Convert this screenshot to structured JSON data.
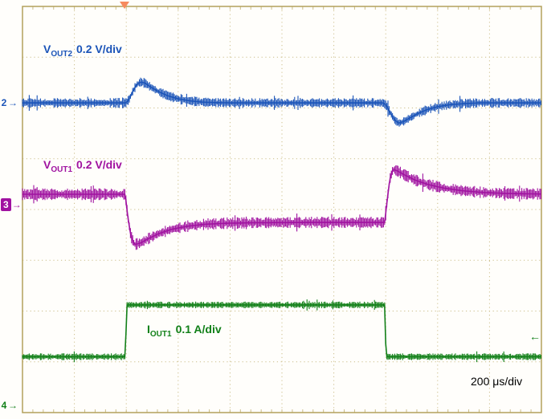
{
  "scope": {
    "timebase_label": "200 μs/div",
    "grid": {
      "h_divisions": 10,
      "v_divisions": 8,
      "graticule_color": "#ccbe8a",
      "border_color": "#b3a15c",
      "background": "#fffefb"
    },
    "trigger_marker": {
      "position_div": 1.97,
      "color": "#f68a5e"
    },
    "right_level_marker": {
      "channel": "4",
      "position_div_from_top": 6.5,
      "color": "#128019"
    }
  },
  "icons": {
    "channel_marker_arrow": "→",
    "trigger_level_arrow": "←"
  },
  "chart_data": {
    "type": "line",
    "x": {
      "unit": "μs",
      "per_division": 200,
      "divisions": 10,
      "total_us": 2000
    },
    "y_divisions": 8,
    "timebase_label": "200 μs/div",
    "series": [
      {
        "name": "VOUT2",
        "channel": "2",
        "label_base": "V",
        "label_sub": "OUT2",
        "label_scale": "0.2 V/div",
        "unit": "V",
        "units_per_div": 0.2,
        "zero_div_from_top": 1.9,
        "noise_amplitude": 0.016,
        "highlighted": false,
        "color": "#1b54b8",
        "points_t_us_v": [
          [
            0,
            0
          ],
          [
            398,
            0
          ],
          [
            410,
            0.012
          ],
          [
            425,
            0.045
          ],
          [
            440,
            0.072
          ],
          [
            455,
            0.082
          ],
          [
            472,
            0.078
          ],
          [
            495,
            0.062
          ],
          [
            525,
            0.044
          ],
          [
            560,
            0.028
          ],
          [
            600,
            0.016
          ],
          [
            645,
            0.008
          ],
          [
            695,
            0.003
          ],
          [
            750,
            0.001
          ],
          [
            800,
            0
          ],
          [
            1390,
            0
          ],
          [
            1402,
            -0.01
          ],
          [
            1418,
            -0.04
          ],
          [
            1435,
            -0.068
          ],
          [
            1450,
            -0.08
          ],
          [
            1468,
            -0.074
          ],
          [
            1492,
            -0.06
          ],
          [
            1522,
            -0.043
          ],
          [
            1558,
            -0.027
          ],
          [
            1600,
            -0.015
          ],
          [
            1648,
            -0.007
          ],
          [
            1700,
            -0.003
          ],
          [
            1760,
            0
          ],
          [
            2000,
            0
          ]
        ]
      },
      {
        "name": "VOUT1",
        "channel": "3",
        "label_base": "V",
        "label_sub": "OUT1",
        "label_scale": "0.2 V/div",
        "unit": "V",
        "units_per_div": 0.2,
        "zero_div_from_top": 3.9,
        "noise_amplitude": 0.019,
        "highlighted": true,
        "color": "#a012a0",
        "points_t_us_v": [
          [
            0,
            0.04
          ],
          [
            396,
            0.04
          ],
          [
            406,
            -0.05
          ],
          [
            418,
            -0.125
          ],
          [
            432,
            -0.158
          ],
          [
            455,
            -0.152
          ],
          [
            485,
            -0.135
          ],
          [
            525,
            -0.115
          ],
          [
            575,
            -0.098
          ],
          [
            635,
            -0.086
          ],
          [
            705,
            -0.078
          ],
          [
            790,
            -0.074
          ],
          [
            900,
            -0.072
          ],
          [
            1100,
            -0.071
          ],
          [
            1396,
            -0.071
          ],
          [
            1406,
            0.02
          ],
          [
            1416,
            0.1
          ],
          [
            1428,
            0.138
          ],
          [
            1445,
            0.132
          ],
          [
            1475,
            0.115
          ],
          [
            1515,
            0.095
          ],
          [
            1565,
            0.078
          ],
          [
            1625,
            0.064
          ],
          [
            1695,
            0.054
          ],
          [
            1775,
            0.047
          ],
          [
            1870,
            0.043
          ],
          [
            2000,
            0.041
          ]
        ]
      },
      {
        "name": "IOUT1",
        "channel": "4",
        "label_base": "I",
        "label_sub": "OUT1",
        "label_scale": "0.1 A/div",
        "unit": "A",
        "units_per_div": 0.1,
        "zero_div_from_top": 7.85,
        "noise_amplitude": 0.0055,
        "highlighted": false,
        "color": "#128019",
        "points_t_us_v": [
          [
            0,
            0.095
          ],
          [
            397,
            0.095
          ],
          [
            401,
            0.197
          ],
          [
            1397,
            0.197
          ],
          [
            1401,
            0.095
          ],
          [
            2000,
            0.095
          ]
        ]
      }
    ]
  }
}
